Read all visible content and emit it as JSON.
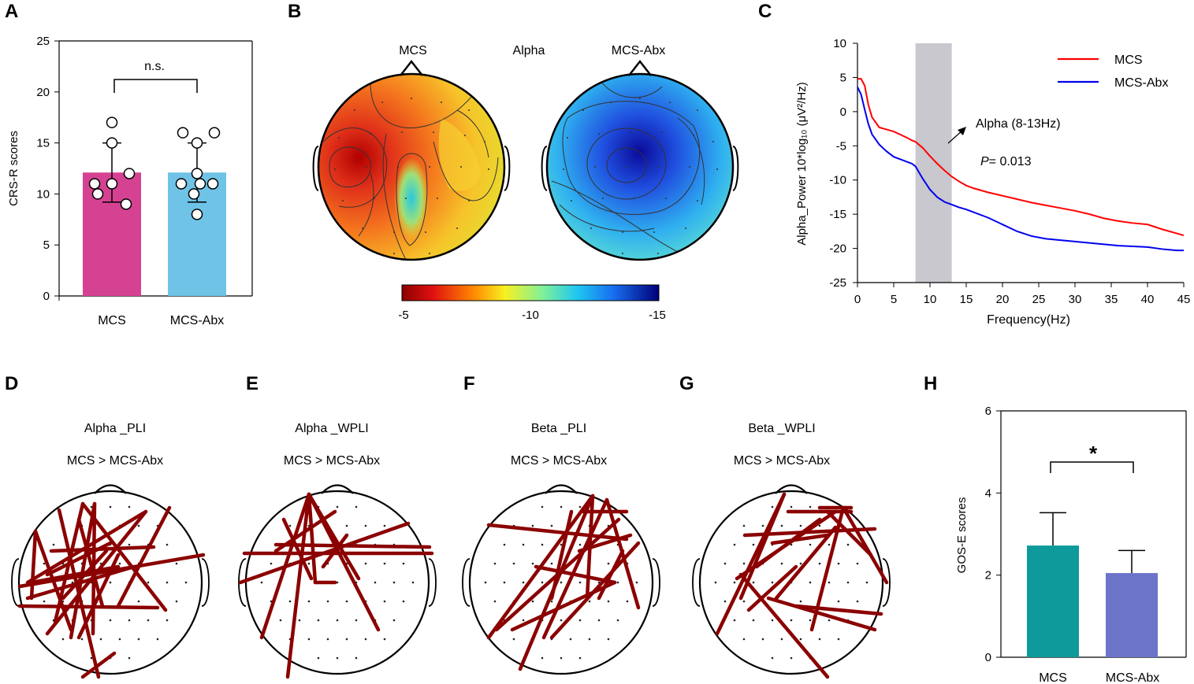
{
  "panels": {
    "A": "A",
    "B": "B",
    "C": "C",
    "D": "D",
    "E": "E",
    "F": "F",
    "G": "G",
    "H": "H"
  },
  "colors": {
    "mcs_bar": "#D64292",
    "abx_bar": "#6EC3E6",
    "mcs_line": "#FF0000",
    "abx_line": "#0000EE",
    "edge": "#8B0000",
    "h_mcs": "#0E9A9A",
    "h_abx": "#6B74C9",
    "alpha_band": "#C8C8CE"
  },
  "chart_data": [
    {
      "id": "A",
      "type": "bar",
      "categories": [
        "MCS",
        "MCS-Abx"
      ],
      "values": [
        12.1,
        12.1
      ],
      "sd": [
        2.9,
        2.9
      ],
      "points": [
        [
          17,
          15,
          12,
          11,
          11,
          10,
          9
        ],
        [
          16,
          16,
          15,
          12,
          11,
          11,
          11,
          10,
          8
        ]
      ],
      "ylabel": "CRS-R scores",
      "ylim": [
        0,
        25
      ],
      "yticks": [
        0,
        5,
        10,
        15,
        20,
        25
      ],
      "annotation": "n.s."
    },
    {
      "id": "B",
      "type": "heatmap",
      "title": "Alpha",
      "maps": [
        "MCS",
        "MCS-Abx"
      ],
      "colorbar": {
        "ticks": [
          "-5",
          "-10",
          "-15"
        ],
        "range": [
          -5,
          -15
        ]
      }
    },
    {
      "id": "C",
      "type": "line",
      "ylabel": "Alpha_Power 10*log₁₀ (μV²/Hz)",
      "xlabel": "Frequency(Hz)",
      "xlim": [
        0,
        45
      ],
      "ylim": [
        -25,
        10
      ],
      "xticks": [
        0,
        5,
        10,
        15,
        20,
        25,
        30,
        35,
        40,
        45
      ],
      "yticks": [
        10,
        5,
        0,
        -5,
        -10,
        -15,
        -20,
        -25
      ],
      "band": [
        8,
        13
      ],
      "band_label": "Alpha (8-13Hz)",
      "p_prefix": "P",
      "p_value": "= 0.013",
      "series": [
        {
          "name": "MCS",
          "x": [
            0,
            0.5,
            1,
            1.5,
            2,
            3,
            4,
            5,
            6,
            7,
            7.5,
            8,
            9,
            10,
            11,
            12,
            13,
            14,
            15,
            16,
            18,
            20,
            22,
            24,
            26,
            28,
            30,
            32,
            34,
            36,
            38,
            40,
            42,
            44,
            45
          ],
          "y": [
            4.8,
            4.8,
            3.8,
            1,
            -0.8,
            -2.3,
            -2.6,
            -2.9,
            -3.4,
            -3.9,
            -4.2,
            -4.4,
            -5.3,
            -6.5,
            -7.6,
            -8.6,
            -9.5,
            -10.2,
            -10.8,
            -11.2,
            -11.8,
            -12.3,
            -12.8,
            -13.3,
            -13.7,
            -14.1,
            -14.5,
            -15,
            -15.6,
            -16,
            -16.3,
            -16.5,
            -17.2,
            -17.8,
            -18.1
          ]
        },
        {
          "name": "MCS-Abx",
          "x": [
            0,
            0.5,
            1,
            1.5,
            2,
            3,
            4,
            5,
            6,
            7,
            7.5,
            8,
            9,
            10,
            11,
            12,
            13,
            14,
            15,
            16,
            18,
            20,
            22,
            24,
            26,
            28,
            30,
            32,
            34,
            36,
            38,
            40,
            42,
            44,
            45
          ],
          "y": [
            3.6,
            2.5,
            0.3,
            -1.8,
            -3.3,
            -4.8,
            -5.8,
            -6.6,
            -7,
            -7.4,
            -7.6,
            -8,
            -9.8,
            -11.4,
            -12.5,
            -13.2,
            -13.6,
            -14,
            -14.3,
            -14.7,
            -15.5,
            -16.5,
            -17.5,
            -18.2,
            -18.6,
            -18.8,
            -19,
            -19.2,
            -19.4,
            -19.6,
            -19.7,
            -19.8,
            -20.1,
            -20.3,
            -20.3
          ]
        }
      ]
    },
    {
      "id": "H",
      "type": "bar",
      "categories": [
        "MCS",
        "MCS-Abx"
      ],
      "values": [
        2.72,
        2.05
      ],
      "sd": [
        0.8,
        0.55
      ],
      "ylabel": "GOS-E scores",
      "ylim": [
        0,
        6
      ],
      "yticks": [
        0,
        2,
        4,
        6
      ],
      "annotation": "*"
    }
  ],
  "networks": [
    {
      "id": "D",
      "title": "Alpha _PLI",
      "subtitle": "MCS > MCS-Abx"
    },
    {
      "id": "E",
      "title": "Alpha _WPLI",
      "subtitle": "MCS > MCS-Abx"
    },
    {
      "id": "F",
      "title": "Beta _PLI",
      "subtitle": "MCS > MCS-Abx"
    },
    {
      "id": "G",
      "title": "Beta _WPLI",
      "subtitle": "MCS > MCS-Abx"
    }
  ]
}
